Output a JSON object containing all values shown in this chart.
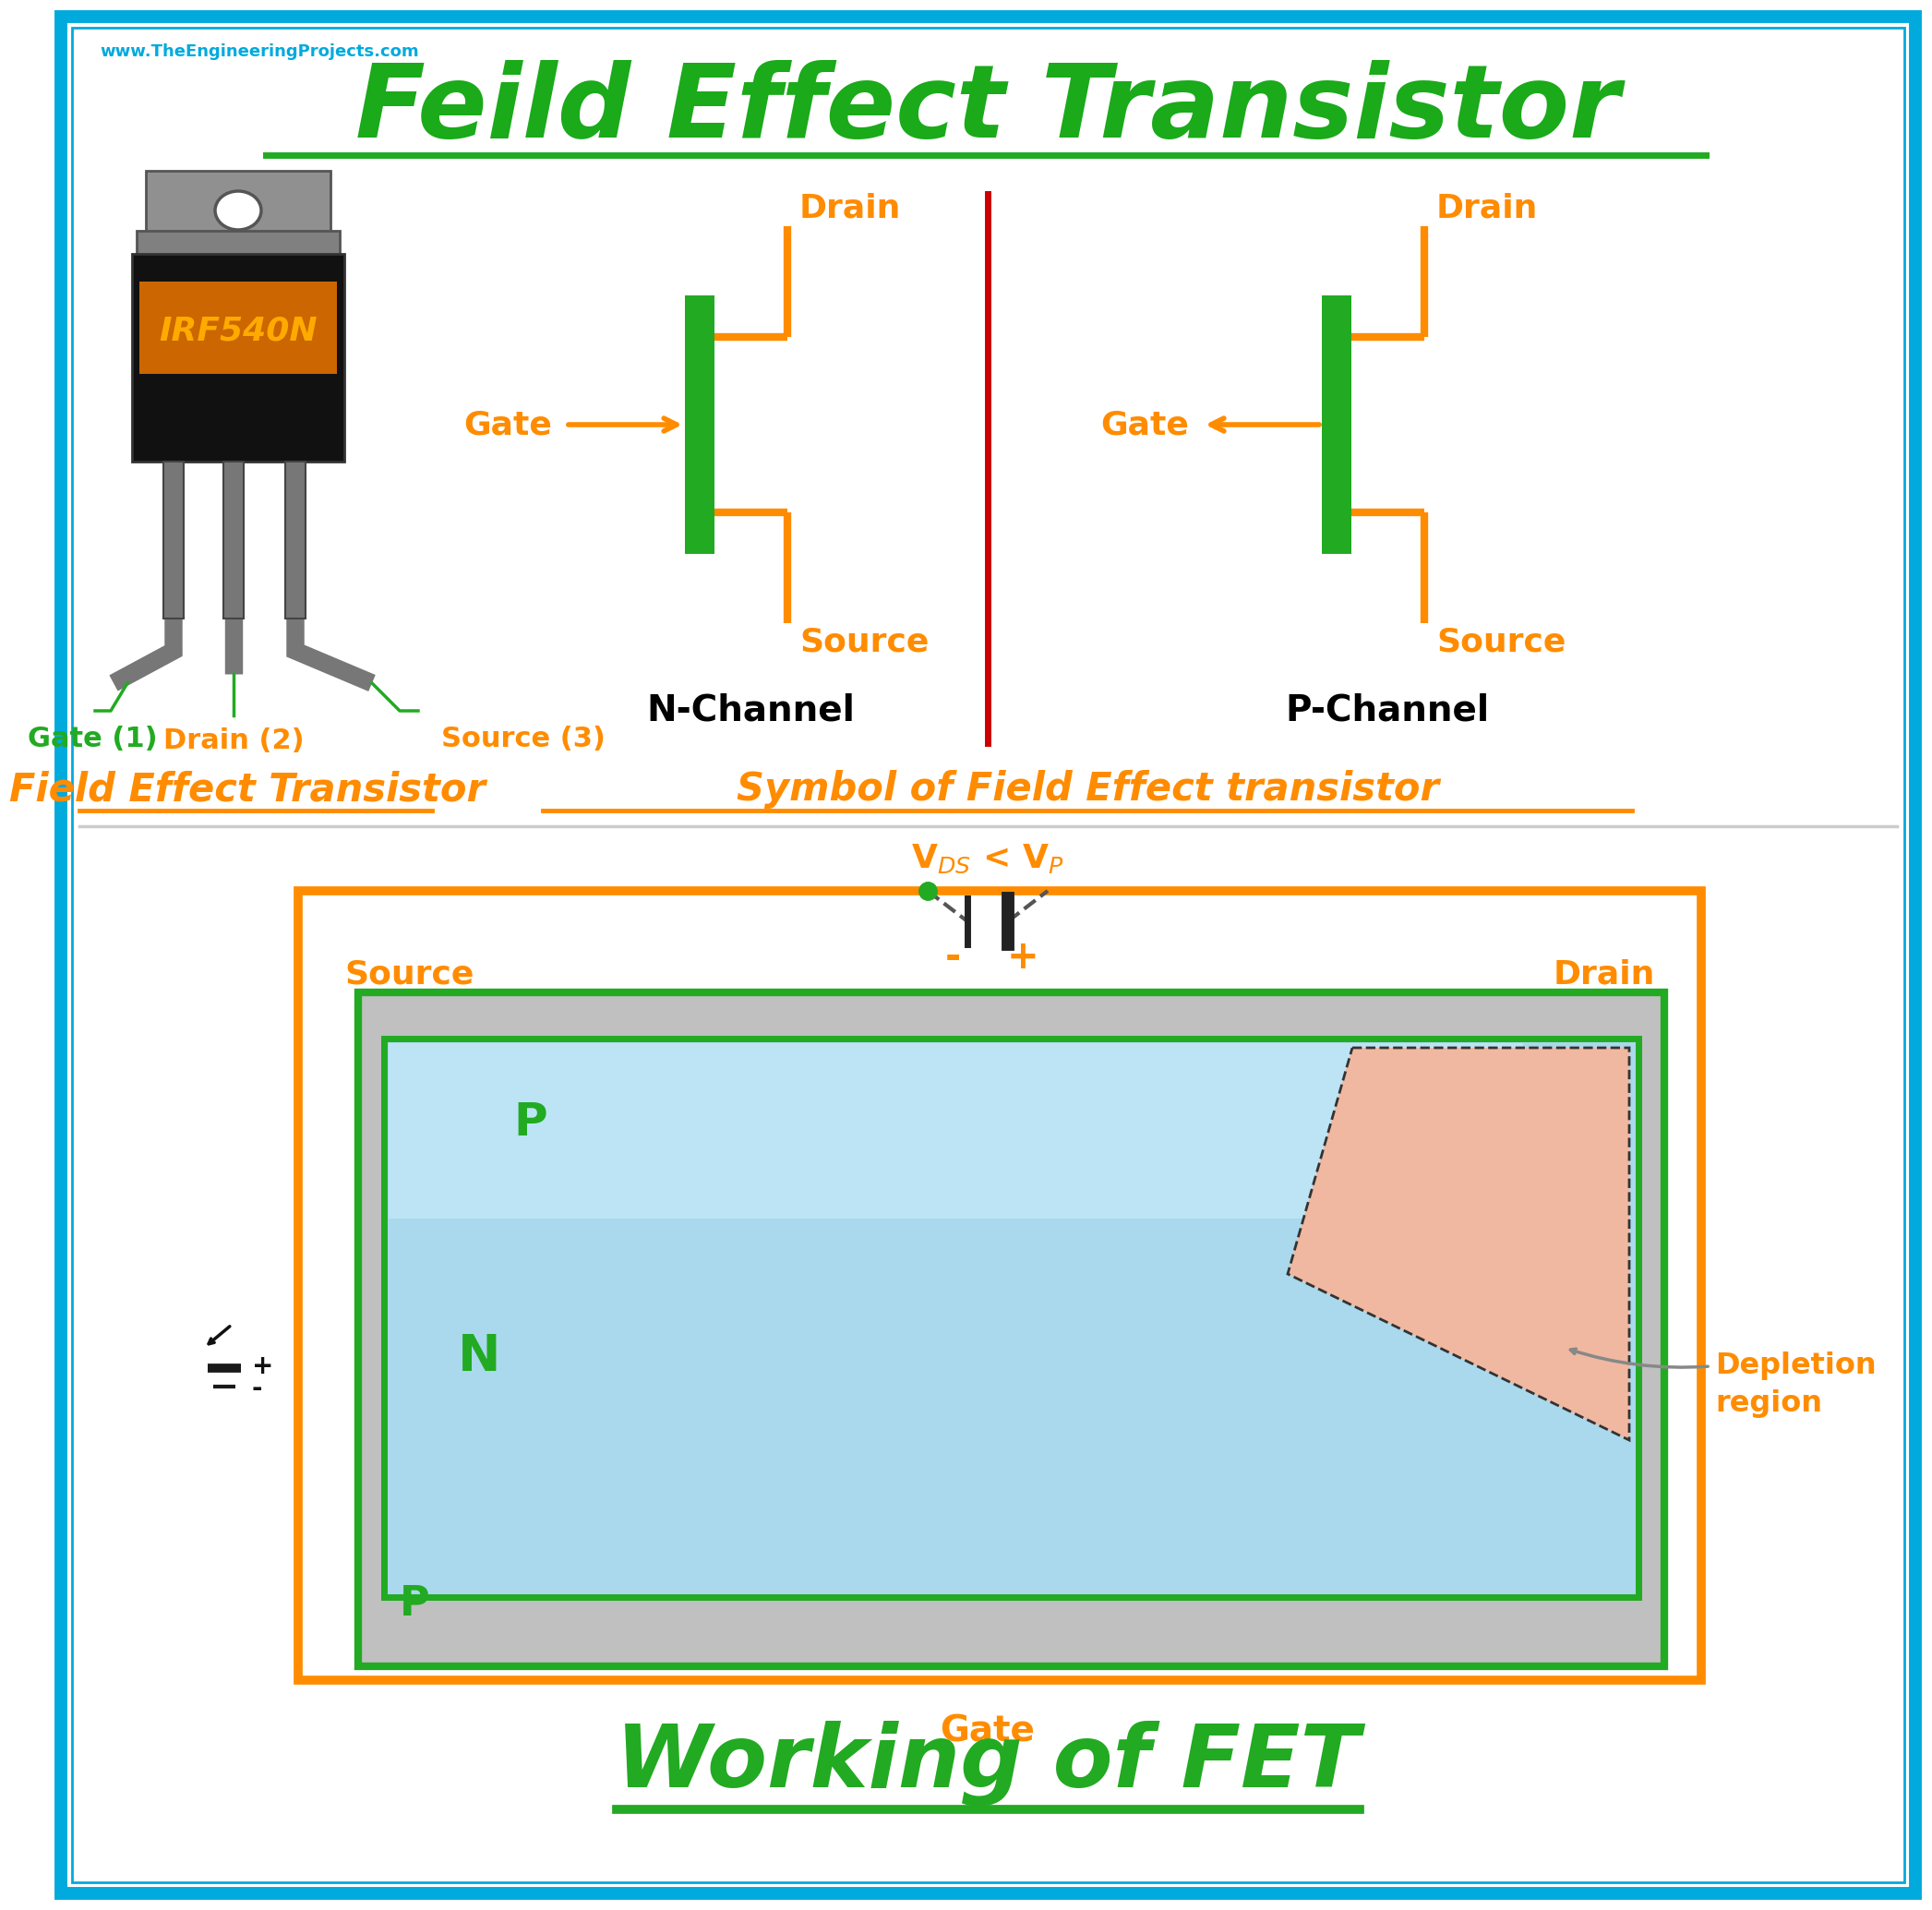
{
  "title": "Feild Effect Transistor",
  "title_color": "#1aaa1a",
  "website": "www.TheEngineeringProjects.com",
  "website_color": "#00aadd",
  "background_color": "#ffffff",
  "border_color": "#00aadd",
  "orange": "#ff8c00",
  "green": "#22aa22",
  "red": "#cc0000",
  "section1_title": "Field Effect Transistor",
  "section2_title": "Symbol of Field Effect transistor",
  "section3_title": "Working of FET",
  "nchannel_label": "N-Channel",
  "pchannel_label": "P-Channel",
  "irflabel": "IRF540N",
  "depletion_label": "Depletion\nregion",
  "source_label": "Source",
  "drain_label": "Drain",
  "gate_label": "Gate",
  "n_label": "N",
  "p_label": "P",
  "vds_label": "V$_{DS}$ < V$_{P}$",
  "gate1_label": "Gate (1)",
  "drain2_label": "Drain (2)",
  "source3_label": "Source (3)"
}
